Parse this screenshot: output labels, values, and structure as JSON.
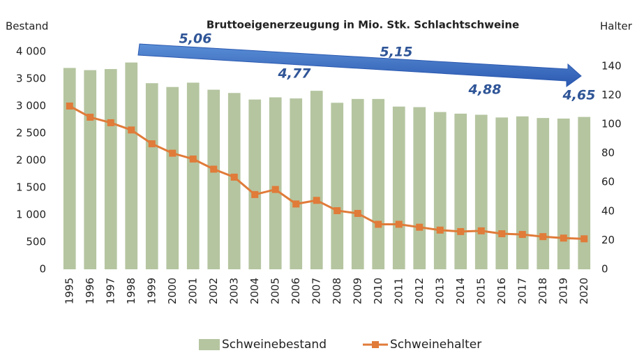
{
  "chart_data": {
    "type": "bar_line",
    "title": "Bruttoeigenerzeugung in Mio. Stk. Schlachtschweine",
    "y_label": "Bestand",
    "y2_label": "Halter",
    "annotations": [
      "5,06",
      "5,15",
      "4,77",
      "4,88",
      "4,65"
    ],
    "categories": [
      "1995",
      "1996",
      "1997",
      "1998",
      "1999",
      "2000",
      "2001",
      "2002",
      "2003",
      "2004",
      "2005",
      "2006",
      "2007",
      "2008",
      "2009",
      "2010",
      "2011",
      "2012",
      "2013",
      "2014",
      "2015",
      "2016",
      "2017",
      "2018",
      "2019",
      "2020"
    ],
    "series": [
      {
        "name": "Schweinebestand",
        "type": "bar",
        "color": "#b5c5a0",
        "values": [
          3700,
          3660,
          3680,
          3800,
          3420,
          3350,
          3430,
          3300,
          3240,
          3120,
          3160,
          3140,
          3280,
          3060,
          3130,
          3130,
          2990,
          2980,
          2890,
          2860,
          2840,
          2790,
          2810,
          2780,
          2770,
          2800
        ]
      },
      {
        "name": "Schweinehalter",
        "type": "line",
        "axis": "y2",
        "color": "#e07b39",
        "values": [
          112.5,
          104.8,
          101,
          96,
          86.5,
          80,
          76,
          69,
          63.5,
          51.5,
          55,
          45,
          47.5,
          40.4,
          38.5,
          31,
          31,
          29,
          27,
          26,
          26.5,
          24.5,
          24,
          22.5,
          21.5,
          21
        ]
      }
    ],
    "ylim": [
      0,
      4000
    ],
    "yticks": [
      0,
      500,
      {
        "value": 1000,
        "label": "1 000"
      },
      {
        "value": 1500,
        "label": "1 500"
      },
      {
        "value": 2000,
        "label": "2 000"
      },
      {
        "value": 2500,
        "label": "2 500"
      },
      {
        "value": 3000,
        "label": "3 000"
      },
      {
        "value": 3500,
        "label": "3 500"
      },
      {
        "value": 4000,
        "label": "4 000"
      }
    ],
    "y2lim": [
      0,
      150
    ],
    "y2ticks": [
      0,
      20,
      40,
      60,
      80,
      100,
      120,
      140
    ],
    "legend": "bottom"
  }
}
